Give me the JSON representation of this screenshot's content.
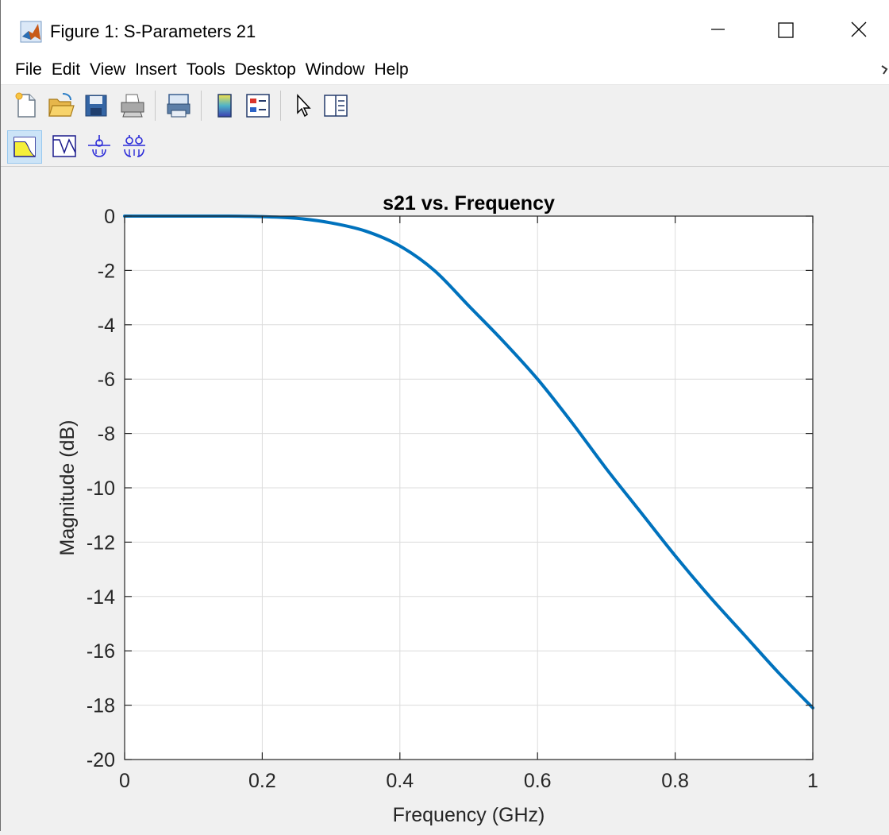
{
  "window": {
    "title": "Figure 1: S-Parameters 21",
    "controls": {
      "minimize": "minimize",
      "maximize": "maximize",
      "close": "close"
    }
  },
  "menu": [
    "File",
    "Edit",
    "View",
    "Insert",
    "Tools",
    "Desktop",
    "Window",
    "Help"
  ],
  "toolbar": {
    "row1": [
      "new-figure-icon",
      "open-file-icon",
      "save-icon",
      "print-icon",
      "print-preview-icon",
      "colorbar-icon",
      "legend-icon",
      "pointer-icon",
      "property-inspector-icon"
    ],
    "row2": [
      "lowpass-filter-icon",
      "bandstop-response-icon",
      "smith-chart-icon",
      "polar-chart-icon"
    ]
  },
  "chart_data": {
    "type": "line",
    "title": "s21 vs. Frequency",
    "xlabel": "Frequency (GHz)",
    "ylabel": "Magnitude (dB)",
    "xlim": [
      0,
      1
    ],
    "ylim": [
      -20,
      0
    ],
    "xticks": [
      "0",
      "0.2",
      "0.4",
      "0.6",
      "0.8",
      "1"
    ],
    "yticks": [
      "0",
      "-2",
      "-4",
      "-6",
      "-8",
      "-10",
      "-12",
      "-14",
      "-16",
      "-18",
      "-20"
    ],
    "grid": true,
    "color": "#0072BD",
    "series": [
      {
        "x": [
          0,
          0.05,
          0.1,
          0.15,
          0.2,
          0.25,
          0.3,
          0.35,
          0.4,
          0.45,
          0.5,
          0.55,
          0.6,
          0.65,
          0.7,
          0.75,
          0.8,
          0.85,
          0.9,
          0.95,
          1.0
        ],
        "values": [
          0,
          0,
          0,
          0,
          -0.02,
          -0.08,
          -0.25,
          -0.55,
          -1.1,
          -2.0,
          -3.3,
          -4.6,
          -6.0,
          -7.6,
          -9.3,
          -10.9,
          -12.5,
          -14.0,
          -15.4,
          -16.8,
          -18.1
        ]
      }
    ]
  }
}
